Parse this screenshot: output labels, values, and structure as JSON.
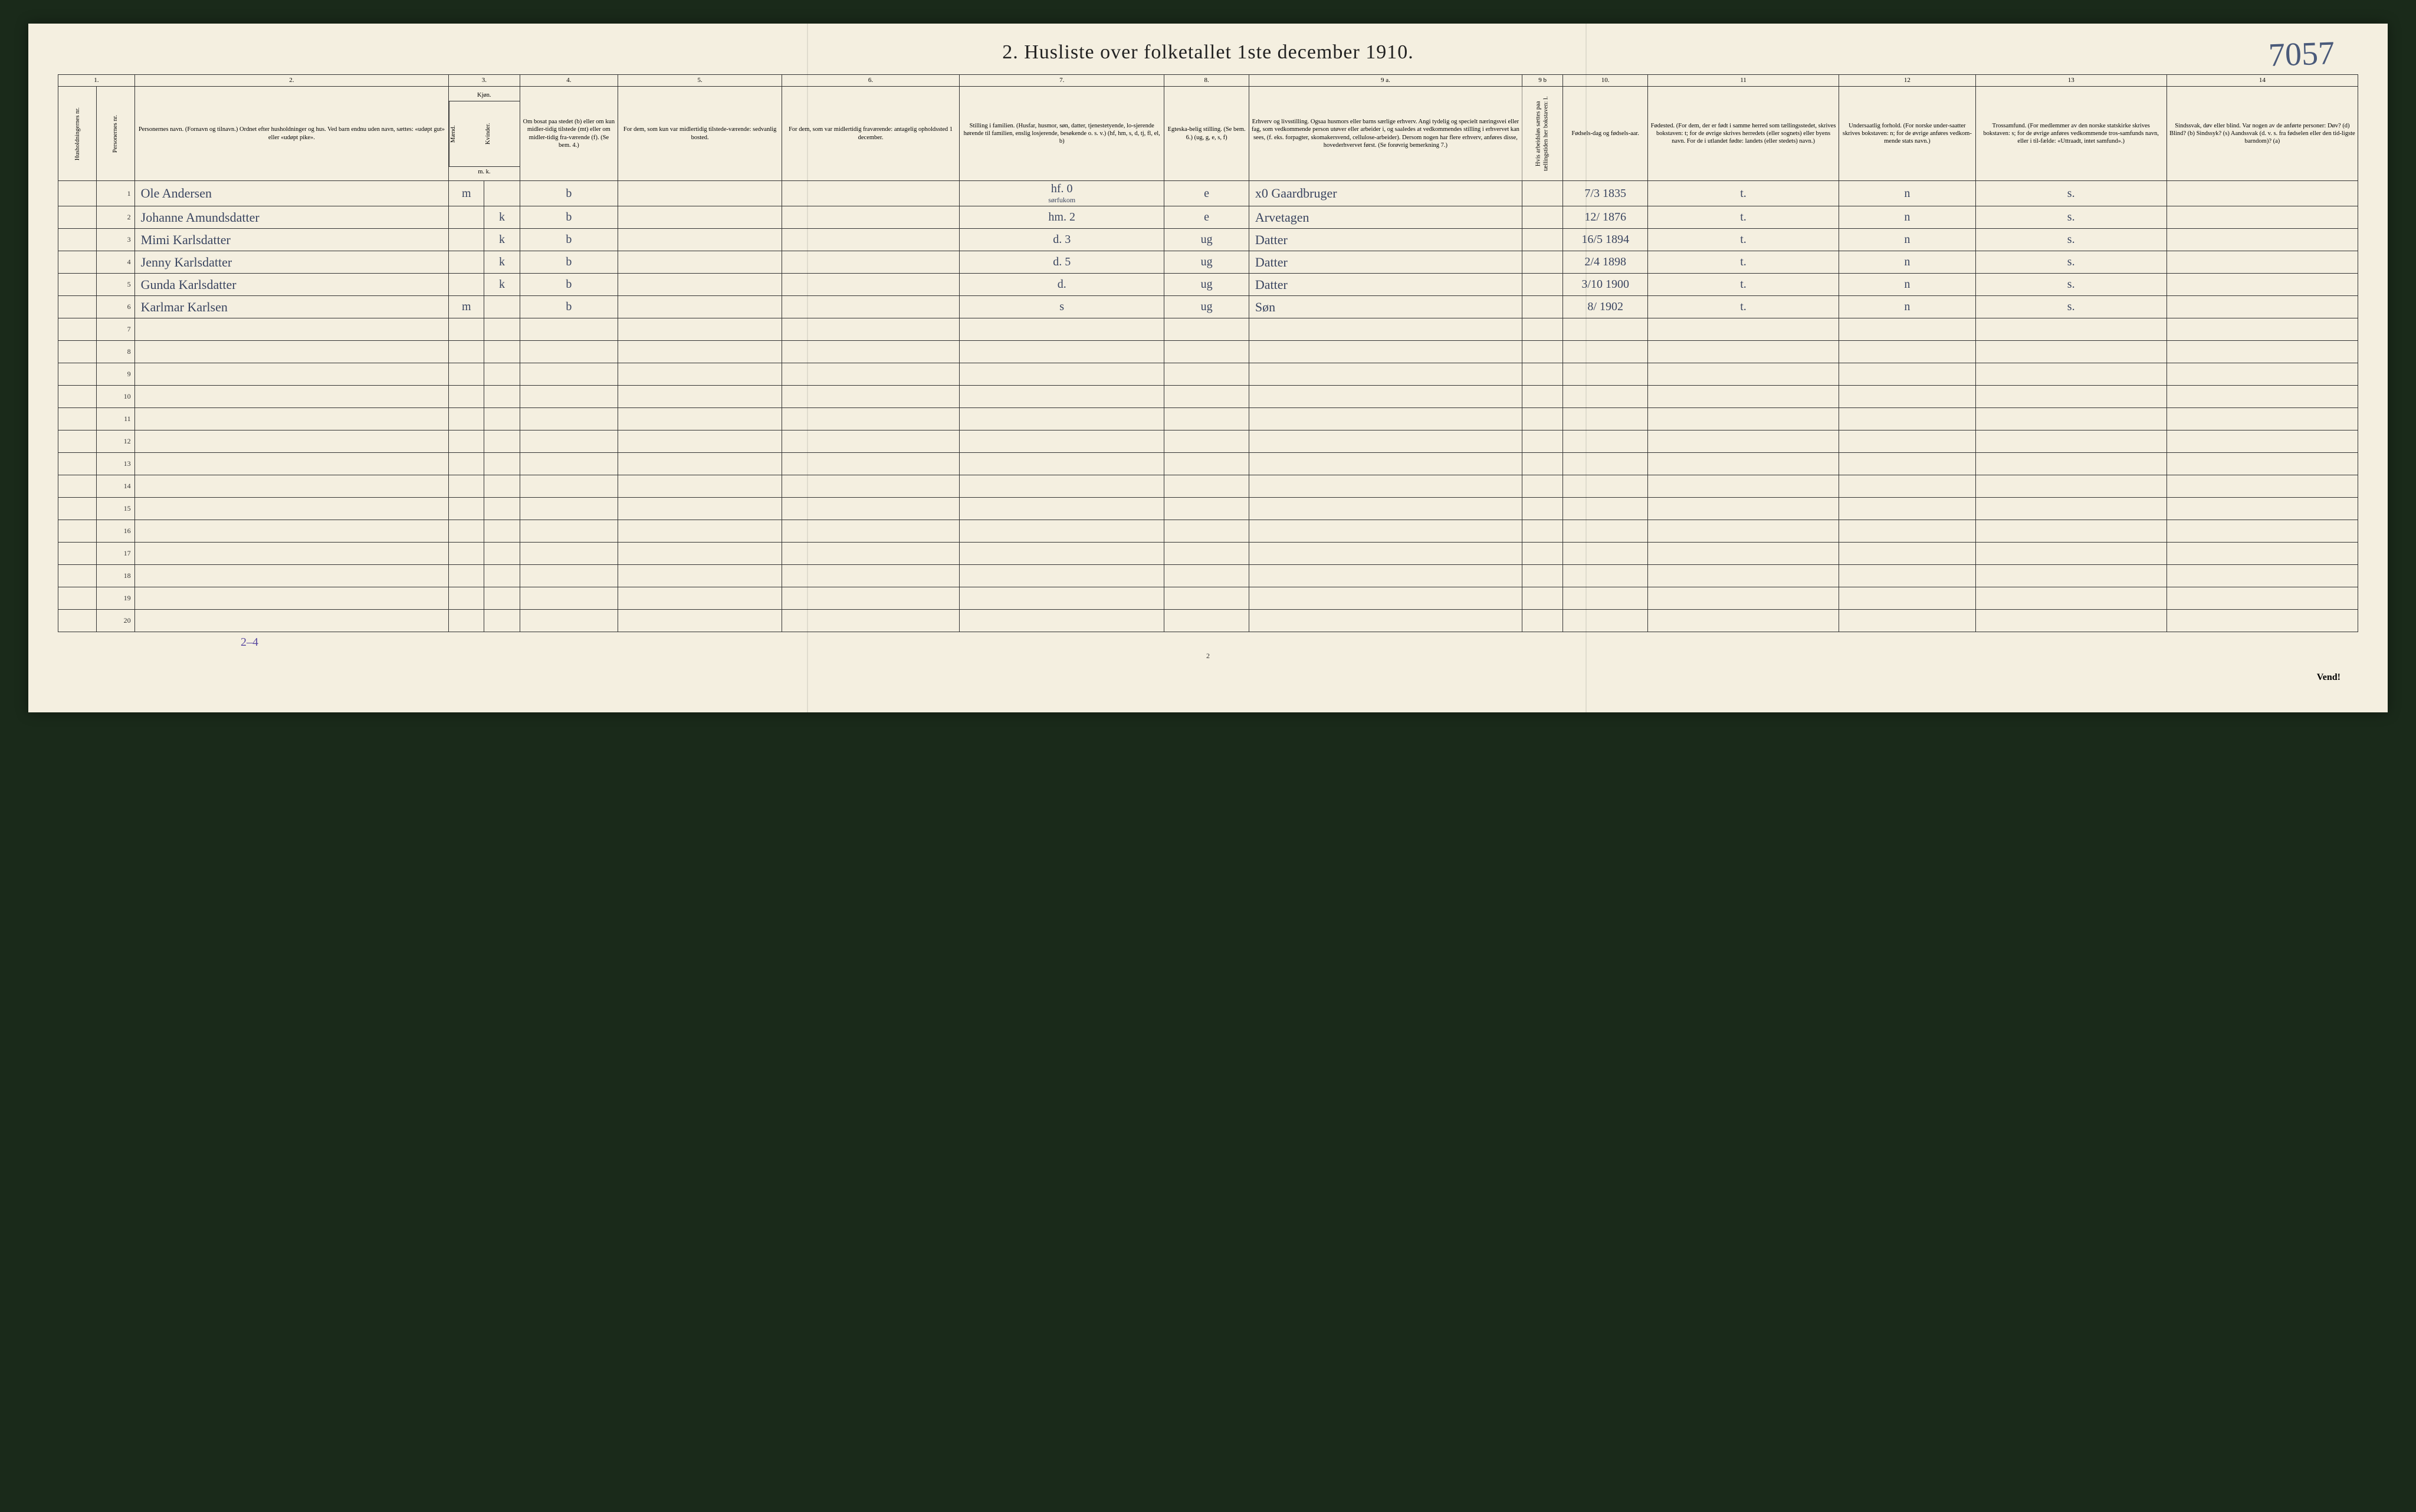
{
  "title": "2.  Husliste over folketallet 1ste december 1910.",
  "handwritten_id": "7057",
  "page_number": "2",
  "vend": "Vend!",
  "footer_note": "2–4",
  "colors": {
    "paper": "#f4efe0",
    "ink_print": "#222222",
    "ink_hand": "#3a4560",
    "border": "#333333",
    "background": "#1a2a1a"
  },
  "typography": {
    "title_fontsize_pt": 26,
    "header_fontsize_pt": 8,
    "handwriting_fontsize_pt": 16
  },
  "col_numbers": [
    "1.",
    "2.",
    "3.",
    "4.",
    "5.",
    "6.",
    "7.",
    "8.",
    "9 a.",
    "9 b",
    "10.",
    "11",
    "12",
    "13",
    "14"
  ],
  "headers": {
    "c1a": "Husholdningernes nr.",
    "c1b": "Personernes nr.",
    "c2": "Personernes navn.\n(Fornavn og tilnavn.)\nOrdnet efter husholdninger og hus.\nVed barn endnu uden navn, sættes: «udøpt gut» eller «udøpt pike».",
    "c3_top": "Kjøn.",
    "c3a": "Mænd.",
    "c3b": "Kvinder.",
    "c3_foot": "m.  k.",
    "c4": "Om bosat paa stedet (b) eller om kun midler-tidig tilstede (mt) eller om midler-tidig fra-værende (f).\n(Se bem. 4.)",
    "c5": "For dem, som kun var midlertidig tilstede-værende:\nsedvanlig bosted.",
    "c6": "For dem, som var midlertidig fraværende:\nantagelig opholdssted 1 december.",
    "c7": "Stilling i familien.\n(Husfar, husmor, søn, datter, tjenestetyende, lo-sjerende hørende til familien, enslig losjerende, besøkende o. s. v.)\n(hf, hm, s, d, tj, fl, el, b)",
    "c8": "Egteska-belig stilling.\n(Se bem. 6.)\n(ug, g, e, s, f)",
    "c9a": "Erhverv og livsstilling.\nOgsaa husmors eller barns særlige erhverv.\nAngi tydelig og specielt næringsvei eller fag, som vedkommende person utøver eller arbeider i, og saaledes at vedkommendes stilling i erhvervet kan sees, (f. eks. forpagter, skomakersvend, cellulose-arbeider). Dersom nogen har flere erhverv, anføres disse, hovederhvervet først.\n(Se forøvrig bemerkning 7.)",
    "c9b": "Hvis arbeidsløs sættes paa tællingstiden her bokstaven: l.",
    "c10": "Fødsels-dag og fødsels-aar.",
    "c11": "Fødested.\n(For dem, der er født i samme herred som tællingsstedet, skrives bokstaven: t; for de øvrige skrives herredets (eller sognets) eller byens navn. For de i utlandet fødte: landets (eller stedets) navn.)",
    "c12": "Undersaatlig forhold.\n(For norske under-saatter skrives bokstaven: n; for de øvrige anføres vedkom-mende stats navn.)",
    "c13": "Trossamfund.\n(For medlemmer av den norske statskirke skrives bokstaven: s; for de øvrige anføres vedkommende tros-samfunds navn, eller i til-fælde: «Uttraadt, intet samfund».)",
    "c14": "Sindssvak, døv eller blind.\nVar nogen av de anførte personer:\nDøv? (d)\nBlind? (b)\nSindssyk? (s)\nAandssvak (d. v. s. fra fødselen eller den tid-ligste barndom)? (a)"
  },
  "rows": [
    {
      "n": "1",
      "name": "Ole Andersen",
      "sex": "m",
      "res": "b",
      "c7": "hf.   0",
      "c7b": "sørfukom",
      "c8": "e",
      "c9a": "x0   Gaardbruger",
      "c10": "7/3 1835",
      "c11": "t.",
      "c12": "n",
      "c13": "s."
    },
    {
      "n": "2",
      "name": "Johanne Amundsdatter",
      "sex": "k",
      "res": "b",
      "c7": "hm.   2",
      "c8": "e",
      "c9a": "Arvetagen",
      "c10": "12/ 1876",
      "c11": "t.",
      "c12": "n",
      "c13": "s."
    },
    {
      "n": "3",
      "name": "Mimi Karlsdatter",
      "sex": "k",
      "res": "b",
      "c7": "d.   3",
      "c8": "ug",
      "c9a": "Datter",
      "c10": "16/5 1894",
      "c11": "t.",
      "c12": "n",
      "c13": "s."
    },
    {
      "n": "4",
      "name": "Jenny Karlsdatter",
      "sex": "k",
      "res": "b",
      "c7": "d.   5",
      "c8": "ug",
      "c9a": "Datter",
      "c10": "2/4 1898",
      "c11": "t.",
      "c12": "n",
      "c13": "s."
    },
    {
      "n": "5",
      "name": "Gunda Karlsdatter",
      "sex": "k",
      "res": "b",
      "c7": "d.",
      "c8": "ug",
      "c9a": "Datter",
      "c10": "3/10 1900",
      "c11": "t.",
      "c12": "n",
      "c13": "s."
    },
    {
      "n": "6",
      "name": "Karlmar Karlsen",
      "sex": "m",
      "res": "b",
      "c7": "s",
      "c8": "ug",
      "c9a": "Søn",
      "c10": "8/  1902",
      "c11": "t.",
      "c12": "n",
      "c13": "s."
    }
  ],
  "empty_rows": [
    "7",
    "8",
    "9",
    "10",
    "11",
    "12",
    "13",
    "14",
    "15",
    "16",
    "17",
    "18",
    "19",
    "20"
  ]
}
